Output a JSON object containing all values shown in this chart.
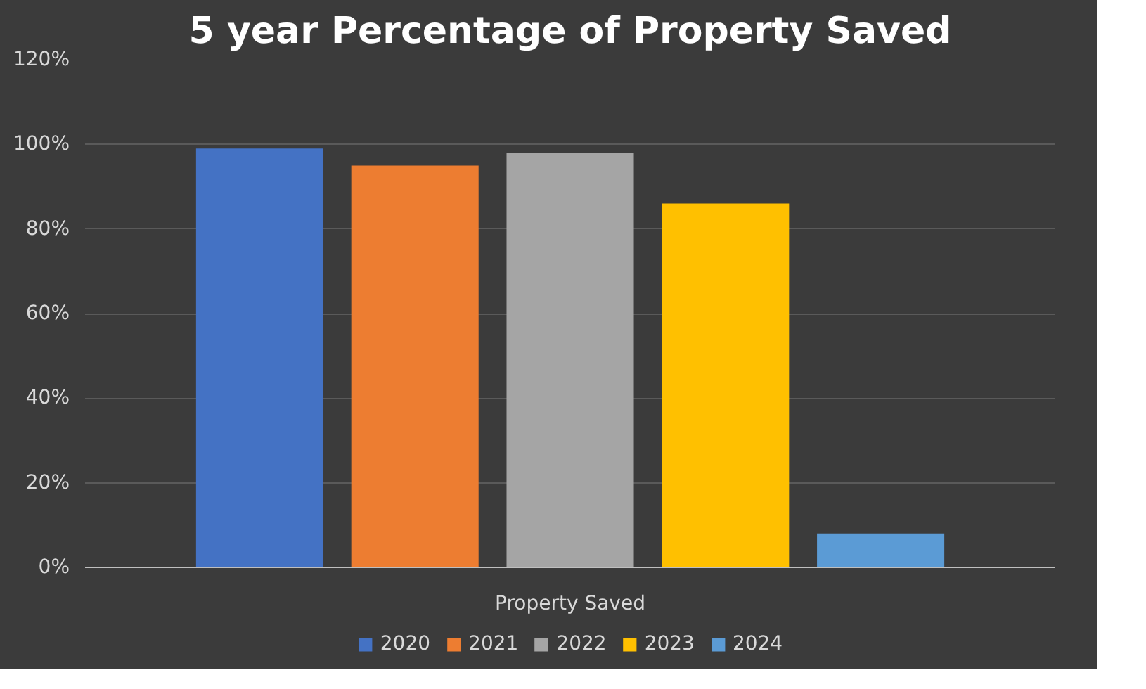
{
  "chart_data": {
    "type": "bar",
    "title": "5 year Percentage of Property Saved",
    "categories": [
      "Property Saved"
    ],
    "series": [
      {
        "name": "2020",
        "color": "#4472c4",
        "values": [
          99
        ]
      },
      {
        "name": "2021",
        "color": "#ed7d31",
        "values": [
          95
        ]
      },
      {
        "name": "2022",
        "color": "#a5a5a5",
        "values": [
          98
        ]
      },
      {
        "name": "2023",
        "color": "#ffc000",
        "values": [
          86
        ]
      },
      {
        "name": "2024",
        "color": "#5b9bd5",
        "values": [
          8
        ]
      }
    ],
    "ylim": [
      0,
      120
    ],
    "yticks": [
      {
        "value": 0,
        "label": "0%"
      },
      {
        "value": 20,
        "label": "20%"
      },
      {
        "value": 40,
        "label": "40%"
      },
      {
        "value": 60,
        "label": "60%"
      },
      {
        "value": 80,
        "label": "80%"
      },
      {
        "value": 100,
        "label": "100%"
      },
      {
        "value": 120,
        "label": "120%"
      }
    ],
    "grid": "y",
    "legend": "bottom"
  }
}
